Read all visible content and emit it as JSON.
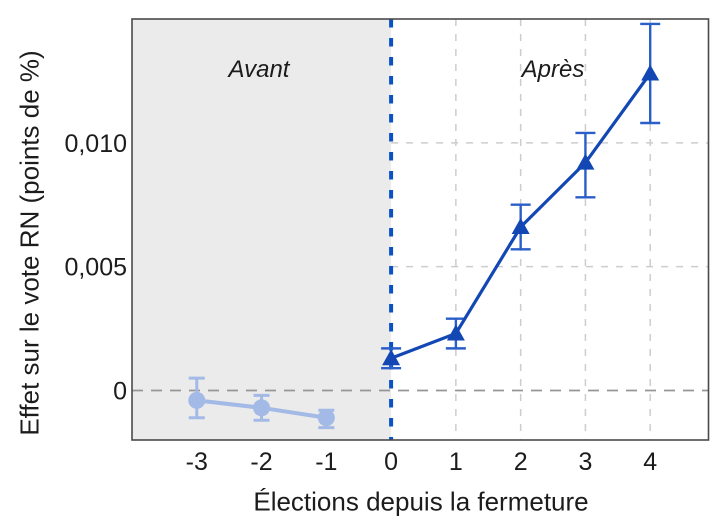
{
  "colors": {
    "dark_blue": "#1247b4",
    "dark_blue_error": "#2a5ec8",
    "light_blue": "#a3b9e6",
    "event_line_blue": "#0b51c6",
    "shade_gray": "#ebebeb",
    "zero_line_gray": "#969696",
    "grid_gray": "#cdcdcd",
    "border_gray": "#4a4a4a",
    "text": "#1c1c1c"
  },
  "chart_data": {
    "type": "line",
    "title": "",
    "xlabel": "Élections depuis la fermeture",
    "ylabel": "Effet sur le vote RN (points de %)",
    "xlim": [
      -4,
      4.9
    ],
    "ylim": [
      -0.002,
      0.015
    ],
    "x_ticks": [
      {
        "value": -3,
        "label": "-3"
      },
      {
        "value": -2,
        "label": "-2"
      },
      {
        "value": -1,
        "label": "-1"
      },
      {
        "value": 0,
        "label": "0"
      },
      {
        "value": 1,
        "label": "1"
      },
      {
        "value": 2,
        "label": "2"
      },
      {
        "value": 3,
        "label": "3"
      },
      {
        "value": 4,
        "label": "4"
      }
    ],
    "y_ticks": [
      {
        "value": 0,
        "label": "0"
      },
      {
        "value": 0.005,
        "label": "0,005"
      },
      {
        "value": 0.01,
        "label": "0,010"
      }
    ],
    "event_line_x": 0,
    "zero_line_y": 0,
    "shaded_region": {
      "from": -4,
      "to": 0,
      "color": "#ebebeb"
    },
    "gridlines": {
      "vertical_x": [
        1,
        2,
        3,
        4
      ],
      "horizontal_y": [
        0.005,
        0.01
      ]
    },
    "legend": {
      "visible": false
    },
    "annotations": [
      {
        "text": "Avant",
        "region": "pre-fermeture"
      },
      {
        "text": "Après",
        "region": "post-fermeture"
      }
    ],
    "series": [
      {
        "name": "Avant",
        "marker": "circle",
        "color": "#a3b9e6",
        "error_color": "#a3b9e6",
        "x": [
          -3,
          -2,
          -1
        ],
        "y": [
          -0.0004,
          -0.0007,
          -0.0011
        ],
        "ci_low": [
          -0.0011,
          -0.0012,
          -0.0015
        ],
        "ci_high": [
          0.0005,
          -0.0002,
          -0.0008
        ]
      },
      {
        "name": "Après",
        "marker": "triangle",
        "color": "#1247b4",
        "error_color": "#2a5ec8",
        "x": [
          0,
          1,
          2,
          3,
          4
        ],
        "y": [
          0.0013,
          0.0023,
          0.0066,
          0.0092,
          0.0128
        ],
        "ci_low": [
          0.0009,
          0.0017,
          0.0057,
          0.0078,
          0.0108
        ],
        "ci_high": [
          0.0017,
          0.0029,
          0.0075,
          0.0104,
          0.0148
        ]
      }
    ]
  }
}
